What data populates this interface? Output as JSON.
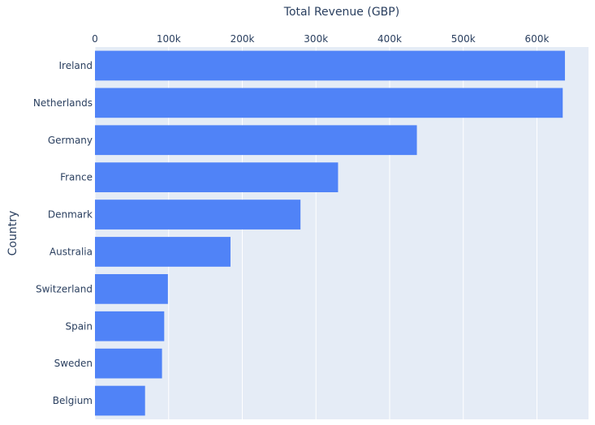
{
  "chart_data": {
    "type": "bar",
    "orientation": "horizontal",
    "categories": [
      "Ireland",
      "Netherlands",
      "Germany",
      "France",
      "Denmark",
      "Australia",
      "Switzerland",
      "Spain",
      "Sweden",
      "Belgium"
    ],
    "values": [
      638000,
      635000,
      437000,
      330000,
      279000,
      184000,
      99000,
      94000,
      91000,
      68000
    ],
    "xlabel": "Total Revenue (GBP)",
    "ylabel": "Country",
    "xlim": [
      0,
      670000
    ],
    "x_ticks": [
      {
        "value": 0,
        "label": "0"
      },
      {
        "value": 100000,
        "label": "100k"
      },
      {
        "value": 200000,
        "label": "200k"
      },
      {
        "value": 300000,
        "label": "300k"
      },
      {
        "value": 400000,
        "label": "400k"
      },
      {
        "value": 500000,
        "label": "500k"
      },
      {
        "value": 600000,
        "label": "600k"
      }
    ],
    "x_axis_position": "top",
    "grid": true,
    "colors": {
      "bar": "#5083f7",
      "plot_background": "#e5ecf6",
      "grid": "#ffffff",
      "text": "#2a3f5f"
    }
  }
}
